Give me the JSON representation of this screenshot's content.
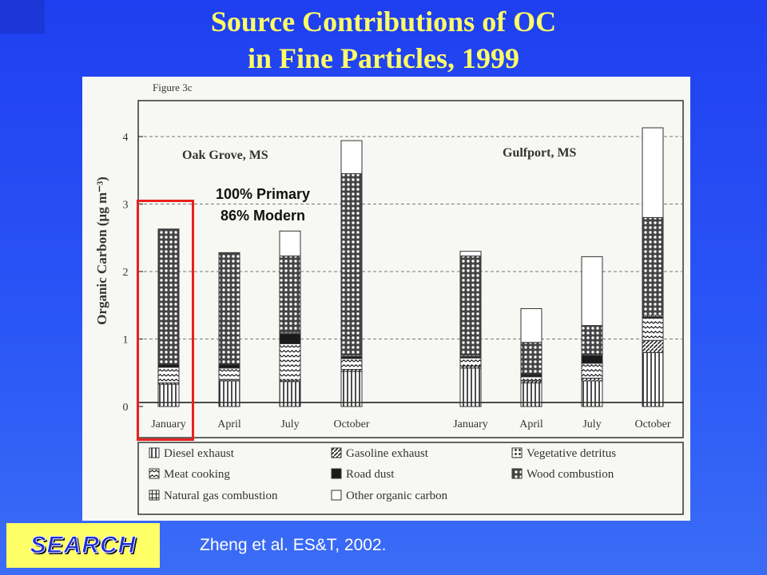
{
  "slide": {
    "title_line1": "Source Contributions of OC",
    "title_line2": "in Fine Particles, 1999",
    "note_line1": "100% Primary",
    "note_line2": "86% Modern",
    "logo_text": "SEARCH",
    "citation": "Zheng et al. ES&T, 2002.",
    "highlight_color": "#e8201c",
    "title_color": "#ffff66"
  },
  "chart_data": {
    "type": "bar",
    "stacked": true,
    "figure_label": "Figure 3c",
    "ylabel": "Organic Carbon (μg m⁻³)",
    "ylim": [
      0,
      4.5
    ],
    "yticks": [
      0,
      1,
      2,
      3,
      4
    ],
    "grid": "dashed horizontal",
    "groups": [
      {
        "name": "Oak Grove, MS",
        "categories": [
          "January",
          "April",
          "July",
          "October"
        ]
      },
      {
        "name": "Gulfport, MS",
        "categories": [
          "January",
          "April",
          "July",
          "October"
        ]
      }
    ],
    "categories": [
      "January",
      "April",
      "July",
      "October",
      "January",
      "April",
      "July",
      "October"
    ],
    "series": [
      {
        "name": "Diesel exhaust",
        "pattern": "vertical-lines",
        "values": [
          0.33,
          0.38,
          0.37,
          0.52,
          0.57,
          0.35,
          0.38,
          0.8
        ]
      },
      {
        "name": "Gasoline exhaust",
        "pattern": "diagonal",
        "values": [
          0.02,
          0.02,
          0.02,
          0.03,
          0.03,
          0.03,
          0.04,
          0.18
        ]
      },
      {
        "name": "Meat cooking",
        "pattern": "waves",
        "values": [
          0.23,
          0.17,
          0.54,
          0.16,
          0.12,
          0.06,
          0.22,
          0.33
        ]
      },
      {
        "name": "Road dust",
        "pattern": "solid",
        "values": [
          0.04,
          0.05,
          0.15,
          0.03,
          0.02,
          0.03,
          0.12,
          0.02
        ]
      },
      {
        "name": "Natural gas combustion",
        "pattern": "cross",
        "values": [
          0.01,
          0.01,
          0.02,
          0.02,
          0.02,
          0.02,
          0.02,
          0.02
        ]
      },
      {
        "name": "Vegetative detritus",
        "pattern": "dots-square",
        "values": [
          0.0,
          0.0,
          0.0,
          0.0,
          0.0,
          0.0,
          0.0,
          0.0
        ]
      },
      {
        "name": "Wood combustion",
        "pattern": "dots",
        "values": [
          2.0,
          1.65,
          1.13,
          2.69,
          1.47,
          0.46,
          0.42,
          1.45
        ]
      },
      {
        "name": "Other organic carbon",
        "pattern": "white",
        "values": [
          0.0,
          0.0,
          0.37,
          0.49,
          0.07,
          0.5,
          1.02,
          1.33
        ]
      }
    ],
    "legend": [
      "Diesel exhaust",
      "Gasoline exhaust",
      "Vegetative detritus",
      "Meat cooking",
      "Road dust",
      "Wood combustion",
      "Natural gas combustion",
      "Other organic carbon"
    ],
    "legend_position": "bottom"
  }
}
